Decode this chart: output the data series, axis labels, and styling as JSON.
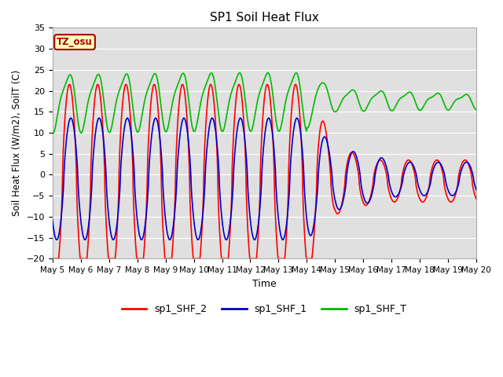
{
  "title": "SP1 Soil Heat Flux",
  "xlabel": "Time",
  "ylabel": "Soil Heat Flux (W/m2), SoilT (C)",
  "ylim": [
    -20,
    35
  ],
  "yticks": [
    -20,
    -15,
    -10,
    -5,
    0,
    5,
    10,
    15,
    20,
    25,
    30,
    35
  ],
  "x_tick_labels": [
    "May 5",
    "May 6",
    "May 7",
    "May 8",
    "May 9",
    "May 10",
    "May 11",
    "May 12",
    "May 13",
    "May 14",
    "May 15",
    "May 16",
    "May 17",
    "May 18",
    "May 19",
    "May 20"
  ],
  "tz_label": "TZ_osu",
  "tz_bg": "#FFFFBB",
  "tz_border": "#AA0000",
  "bg_color": "#E0E0E0",
  "line_colors": {
    "sp1_SHF_2": "#FF0000",
    "sp1_SHF_1": "#0000CC",
    "sp1_SHF_T": "#00BB00"
  },
  "line_width": 1.2,
  "num_days": 15,
  "points_per_day": 144
}
